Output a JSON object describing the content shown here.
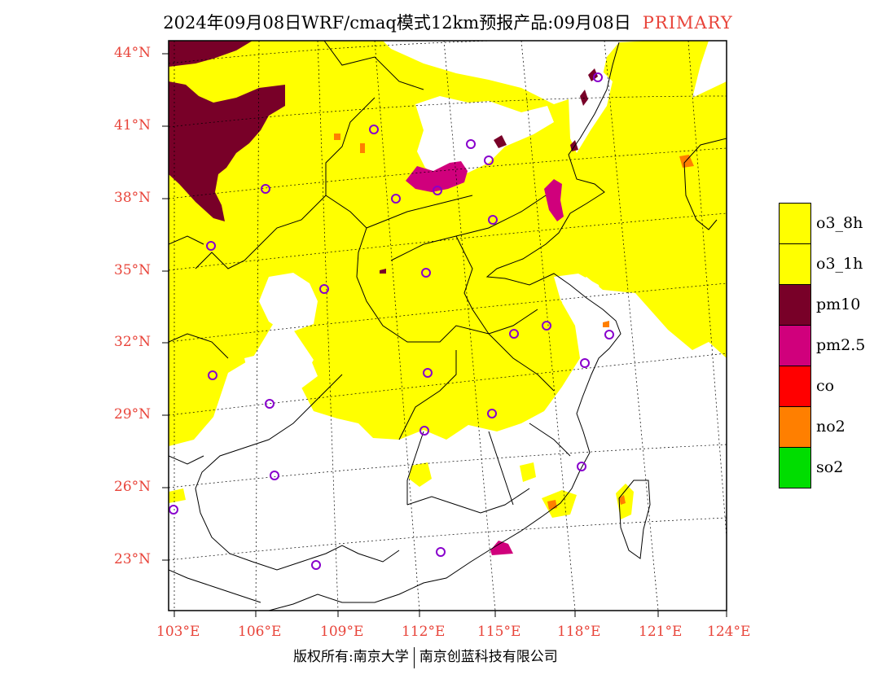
{
  "title": {
    "text": "2024年09月08日WRF/cmaq模式12km预报产品:09月08日",
    "tag": "PRIMARY"
  },
  "colors": {
    "o3": "#ffff00",
    "pm10": "#780028",
    "pm25": "#d0007c",
    "co": "#ff0000",
    "no2": "#ff7f00",
    "so2": "#00dd00",
    "label_red": "#e8443a",
    "station_marker": "#8800cc"
  },
  "lat_labels": [
    "44°N",
    "41°N",
    "38°N",
    "35°N",
    "32°N",
    "29°N",
    "26°N",
    "23°N"
  ],
  "lon_labels": [
    "103°E",
    "106°E",
    "109°E",
    "112°E",
    "115°E",
    "118°E",
    "121°E",
    "124°E"
  ],
  "legend": [
    {
      "label": "o3_8h",
      "color": "#ffff00"
    },
    {
      "label": "o3_1h",
      "color": "#ffff00"
    },
    {
      "label": "pm10",
      "color": "#780028"
    },
    {
      "label": "pm2.5",
      "color": "#d0007c"
    },
    {
      "label": "co",
      "color": "#ff0000"
    },
    {
      "label": "no2",
      "color": "#ff7f00"
    },
    {
      "label": "so2",
      "color": "#00dd00"
    }
  ],
  "footer": {
    "left": "版权所有:南京大学",
    "right": "南京创蓝科技有限公司"
  }
}
